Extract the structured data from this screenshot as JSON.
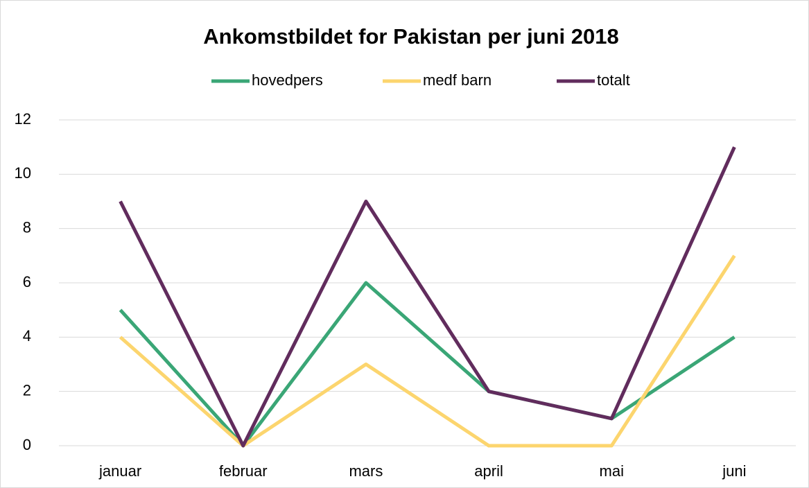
{
  "chart_data": {
    "type": "line",
    "title": "Ankomstbildet for Pakistan per juni 2018",
    "categories": [
      "januar",
      "februar",
      "mars",
      "april",
      "mai",
      "juni"
    ],
    "series": [
      {
        "name": "hovedpers",
        "color": "#3aa676",
        "values": [
          5,
          0,
          6,
          2,
          1,
          4
        ]
      },
      {
        "name": "medf barn",
        "color": "#fcd56e",
        "values": [
          4,
          0,
          3,
          0,
          0,
          7
        ]
      },
      {
        "name": "totalt",
        "color": "#612c5d",
        "values": [
          9,
          0,
          9,
          2,
          1,
          11
        ]
      }
    ],
    "ylim": [
      0,
      12
    ],
    "yticks": [
      0,
      2,
      4,
      6,
      8,
      10,
      12
    ],
    "grid": true,
    "legend": "top"
  }
}
